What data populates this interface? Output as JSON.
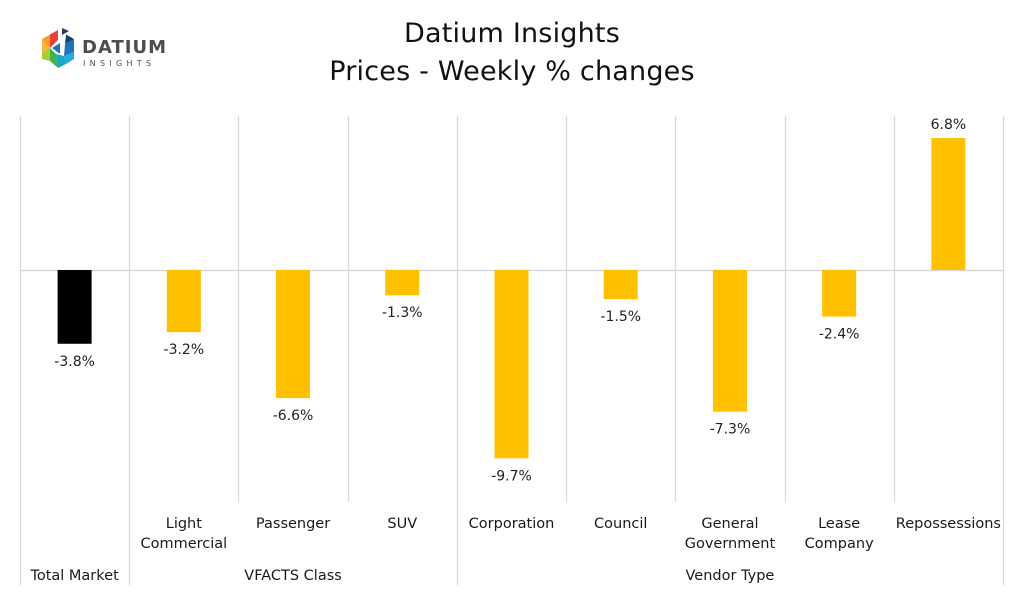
{
  "logo": {
    "brand": "DATIUM",
    "tagline": "INSIGHTS",
    "icon": "hexagon-d-logo-icon"
  },
  "header": {
    "title_line1": "Datium Insights",
    "title_line2": "Prices - Weekly % changes"
  },
  "chart_data": {
    "type": "bar",
    "title": "Datium Insights",
    "subtitle": "Prices - Weekly % changes",
    "xlabel": "",
    "ylabel": "",
    "ylim": [
      -11.6,
      7.9
    ],
    "grid": true,
    "legend": "none",
    "categories": [
      "Total Market",
      "Light Commercial",
      "Passenger",
      "SUV",
      "Corporation",
      "Council",
      "General Government",
      "Lease Company",
      "Repossessions"
    ],
    "category_lines": [
      [
        "Total Market"
      ],
      [
        "Light",
        "Commercial"
      ],
      [
        "Passenger"
      ],
      [
        "SUV"
      ],
      [
        "Corporation"
      ],
      [
        "Council"
      ],
      [
        "General",
        "Government"
      ],
      [
        "Lease",
        "Company"
      ],
      [
        "Repossessions"
      ]
    ],
    "groups": [
      {
        "name": "Total Market",
        "span": 1,
        "label_on_row": "group"
      },
      {
        "name": "VFACTS Class",
        "span": 3
      },
      {
        "name": "Vendor Type",
        "span": 5
      }
    ],
    "values": [
      -3.8,
      -3.2,
      -6.6,
      -1.3,
      -9.7,
      -1.5,
      -7.3,
      -2.4,
      6.8
    ],
    "data_labels": [
      "-3.8%",
      "-3.2%",
      "-6.6%",
      "-1.3%",
      "-9.7%",
      "-1.5%",
      "-7.3%",
      "-2.4%",
      "6.8%"
    ],
    "colors": {
      "highlight": "#000000",
      "default": "#FFC000",
      "grid": "#d9d9d9"
    },
    "highlight_index": 0
  }
}
